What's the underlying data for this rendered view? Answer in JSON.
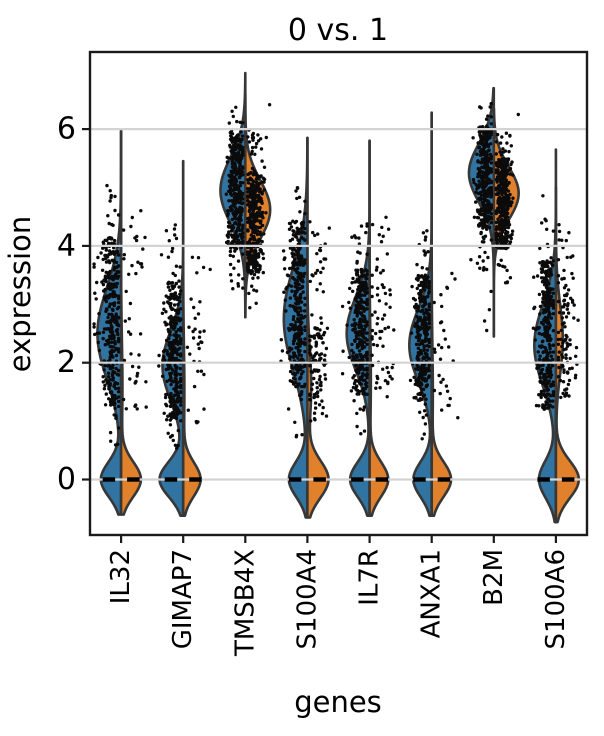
{
  "figure": {
    "title": "0 vs. 1",
    "xlabel": "genes",
    "ylabel": "expression"
  },
  "chart_data": {
    "type": "violin",
    "title": "0 vs. 1",
    "xlabel": "genes",
    "ylabel": "expression",
    "categories": [
      "IL32",
      "GIMAP7",
      "TMSB4X",
      "S100A4",
      "IL7R",
      "ANXA1",
      "B2M",
      "S100A6"
    ],
    "yticks": [
      0,
      2,
      4,
      6
    ],
    "ylim": [
      -0.95,
      7.32
    ],
    "grid": true,
    "legend": null,
    "style": {
      "left_fill": "#3274a1",
      "right_fill": "#e1812c",
      "edge": "#373737",
      "grid_color": "#d3d3d3",
      "dot_color": "#0b0b0b",
      "spine_color": "#1a1a1a",
      "dash_color": "#000000"
    },
    "violins": [
      {
        "name": "IL32",
        "zero_dash": true,
        "left": {
          "support": [
            -0.6,
            5.97
          ],
          "bumps": [
            [
              2.5,
              0.78,
              1.0
            ],
            [
              0,
              0.3,
              0.85
            ]
          ],
          "scale": 0.95
        },
        "right": {
          "support": [
            -0.6,
            5.97
          ],
          "bumps": [
            [
              0,
              0.3,
              1.0
            ],
            [
              1.6,
              0.8,
              0.07
            ]
          ],
          "scale": 0.8
        },
        "dots": [
          [
            "L",
            1.25,
            4.15,
            330,
            9,
            4.2
          ],
          [
            "L",
            4.2,
            5.2,
            12,
            9,
            4.5
          ],
          [
            "L",
            2.2,
            4.0,
            22,
            22,
            4
          ],
          [
            "L",
            0.5,
            1.25,
            9,
            8,
            4
          ],
          [
            "R",
            0.9,
            4.75,
            42,
            13,
            6.5
          ]
        ]
      },
      {
        "name": "GIMAP7",
        "zero_dash": true,
        "left": {
          "support": [
            -0.62,
            5.45
          ],
          "bumps": [
            [
              1.95,
              0.6,
              0.88
            ],
            [
              0,
              0.3,
              1.0
            ]
          ],
          "scale": 0.95
        },
        "right": {
          "support": [
            -0.62,
            5.45
          ],
          "bumps": [
            [
              0,
              0.29,
              1.0
            ],
            [
              1.5,
              0.8,
              0.07
            ]
          ],
          "scale": 0.7
        },
        "dots": [
          [
            "L",
            1.0,
            3.4,
            300,
            9,
            4.2
          ],
          [
            "L",
            3.4,
            4.6,
            14,
            9,
            5
          ],
          [
            "L",
            1.6,
            3.2,
            12,
            21,
            4
          ],
          [
            "L",
            0.4,
            1.0,
            9,
            8,
            4
          ],
          [
            "R",
            0.8,
            3.9,
            34,
            13,
            6.5
          ]
        ]
      },
      {
        "name": "TMSB4X",
        "zero_dash": false,
        "left": {
          "support": [
            2.78,
            6.96
          ],
          "bumps": [
            [
              4.95,
              0.56,
              1.0
            ]
          ],
          "scale": 1.0
        },
        "right": {
          "support": [
            2.78,
            6.6
          ],
          "bumps": [
            [
              4.62,
              0.5,
              1.0
            ]
          ],
          "scale": 1.0
        },
        "dots": [
          [
            "L",
            3.95,
            5.95,
            340,
            9,
            4.2
          ],
          [
            "L",
            3.2,
            3.95,
            16,
            8,
            4.5
          ],
          [
            "L",
            5.95,
            6.4,
            8,
            7,
            4
          ],
          [
            "R",
            3.5,
            5.3,
            340,
            9,
            4.2
          ],
          [
            "R",
            5.3,
            6.0,
            22,
            10,
            5
          ],
          [
            "R",
            2.9,
            3.5,
            8,
            8,
            4
          ],
          [
            "R",
            6.4,
            6.5,
            1,
            24,
            0.5
          ]
        ]
      },
      {
        "name": "S100A4",
        "zero_dash": true,
        "left": {
          "support": [
            -0.65,
            5.85
          ],
          "bumps": [
            [
              2.75,
              0.88,
              1.0
            ],
            [
              0,
              0.3,
              0.78
            ]
          ],
          "scale": 0.95
        },
        "right": {
          "support": [
            -0.65,
            5.85
          ],
          "bumps": [
            [
              0,
              0.32,
              1.0
            ],
            [
              1.6,
              0.65,
              0.18
            ]
          ],
          "scale": 0.85
        },
        "dots": [
          [
            "L",
            1.55,
            4.45,
            330,
            9,
            4.2
          ],
          [
            "L",
            4.45,
            5.0,
            8,
            8,
            4
          ],
          [
            "L",
            0.7,
            1.55,
            10,
            8,
            4
          ],
          [
            "L",
            2.0,
            4.2,
            14,
            22,
            3.5
          ],
          [
            "R",
            1.0,
            2.7,
            95,
            10,
            5
          ],
          [
            "R",
            2.7,
            4.5,
            26,
            12,
            6
          ]
        ]
      },
      {
        "name": "IL7R",
        "zero_dash": true,
        "left": {
          "support": [
            -0.62,
            5.8
          ],
          "bumps": [
            [
              2.5,
              0.63,
              1.0
            ],
            [
              0,
              0.3,
              0.85
            ]
          ],
          "scale": 0.92
        },
        "right": {
          "support": [
            -0.62,
            5.8
          ],
          "bumps": [
            [
              0,
              0.3,
              1.0
            ],
            [
              1.7,
              0.8,
              0.07
            ]
          ],
          "scale": 0.75
        },
        "dots": [
          [
            "L",
            1.45,
            3.6,
            300,
            9,
            4.2
          ],
          [
            "L",
            3.6,
            4.4,
            14,
            9,
            4.5
          ],
          [
            "L",
            0.6,
            1.45,
            8,
            8,
            4
          ],
          [
            "L",
            1.8,
            3.4,
            10,
            21,
            3.5
          ],
          [
            "R",
            1.3,
            3.6,
            55,
            12,
            6
          ],
          [
            "R",
            3.6,
            4.6,
            10,
            12,
            6
          ]
        ]
      },
      {
        "name": "ANXA1",
        "zero_dash": true,
        "left": {
          "support": [
            -0.62,
            6.28
          ],
          "bumps": [
            [
              2.3,
              0.62,
              1.0
            ],
            [
              0,
              0.3,
              0.82
            ]
          ],
          "scale": 0.9
        },
        "right": {
          "support": [
            -0.62,
            6.28
          ],
          "bumps": [
            [
              0,
              0.3,
              1.0
            ],
            [
              1.5,
              0.8,
              0.06
            ]
          ],
          "scale": 0.78
        },
        "dots": [
          [
            "L",
            1.35,
            3.5,
            300,
            9,
            4.2
          ],
          [
            "L",
            3.5,
            4.3,
            12,
            9,
            4.5
          ],
          [
            "L",
            0.6,
            1.35,
            8,
            8,
            4
          ],
          [
            "R",
            0.9,
            3.6,
            30,
            13,
            6.5
          ]
        ]
      },
      {
        "name": "B2M",
        "zero_dash": false,
        "left": {
          "support": [
            2.45,
            6.7
          ],
          "bumps": [
            [
              5.25,
              0.5,
              1.0
            ]
          ],
          "scale": 1.0
        },
        "right": {
          "support": [
            2.45,
            6.35
          ],
          "bumps": [
            [
              4.9,
              0.45,
              1.0
            ]
          ],
          "scale": 1.0
        },
        "dots": [
          [
            "L",
            4.3,
            6.05,
            340,
            9,
            4.2
          ],
          [
            "L",
            3.5,
            4.3,
            20,
            9,
            4.5
          ],
          [
            "L",
            6.05,
            6.45,
            10,
            7,
            4
          ],
          [
            "L",
            2.55,
            3.3,
            4,
            6,
            3
          ],
          [
            "R",
            3.95,
            5.5,
            340,
            9,
            4.2
          ],
          [
            "R",
            5.5,
            5.95,
            16,
            10,
            5
          ],
          [
            "R",
            3.3,
            3.95,
            10,
            9,
            4.5
          ],
          [
            "R",
            6.2,
            6.3,
            1,
            24,
            0.5
          ]
        ]
      },
      {
        "name": "S100A6",
        "zero_dash": true,
        "left": {
          "support": [
            -0.73,
            5.65
          ],
          "bumps": [
            [
              2.3,
              0.7,
              1.0
            ],
            [
              0,
              0.32,
              0.78
            ]
          ],
          "scale": 0.87
        },
        "right": {
          "support": [
            -0.73,
            5.0
          ],
          "bumps": [
            [
              0,
              0.32,
              1.0
            ],
            [
              2.4,
              0.6,
              0.3
            ]
          ],
          "scale": 0.92
        },
        "dots": [
          [
            "L",
            1.2,
            3.75,
            310,
            9,
            4.2
          ],
          [
            "L",
            3.75,
            4.9,
            10,
            9,
            4.5
          ],
          [
            "L",
            1.8,
            3.5,
            10,
            20,
            3.5
          ],
          [
            "R",
            1.4,
            3.45,
            90,
            10,
            5
          ],
          [
            "R",
            3.45,
            4.5,
            14,
            11,
            5.5
          ]
        ]
      }
    ]
  }
}
